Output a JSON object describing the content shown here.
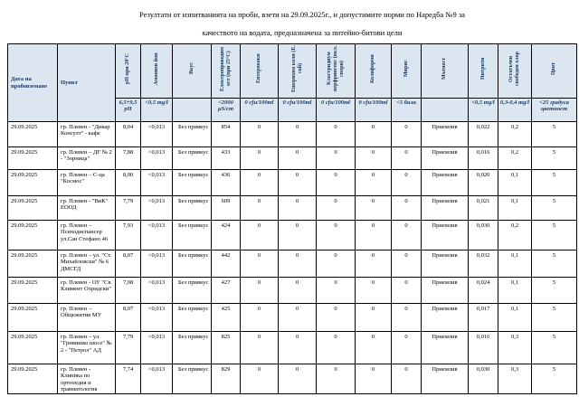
{
  "title": {
    "line1": "Резултати от изпитванията на проби, взети на 29.09.2025г., и допустимите норми по Наредба №9 за",
    "line2": "качеството на водата, предназначена за питейно-битови цели"
  },
  "colors": {
    "header_bg": "#dce6f1",
    "header_text": "#17375e"
  },
  "table": {
    "columns": [
      {
        "label": "Дата на пробовземане",
        "limit": null,
        "rotated": false
      },
      {
        "label": "Пункт",
        "limit": null,
        "rotated": false
      },
      {
        "label": "pH при 20°С",
        "limit": "6,5÷9,5 pH",
        "rotated": true
      },
      {
        "label": "Амониев йон",
        "limit": "<0,5 mg/l",
        "rotated": true
      },
      {
        "label": "Вкус",
        "limit": "",
        "rotated": true
      },
      {
        "label": "Електропроводимост (при 25°С)",
        "limit": "<2000 µS/cm",
        "rotated": true
      },
      {
        "label": "Ентерококи",
        "limit": "0 cfu/100ml",
        "rotated": true
      },
      {
        "label": "Ешерихия коли (E. coli)",
        "limit": "0 cfu/100ml",
        "rotated": true
      },
      {
        "label": "Клостридиум перфрингенс (вкл. спори)",
        "limit": "0 cfu/100ml",
        "rotated": true
      },
      {
        "label": "Колиформи",
        "limit": "0 cfu/100ml",
        "rotated": true
      },
      {
        "label": "Мирис",
        "limit": "<5 бала",
        "rotated": true
      },
      {
        "label": "Мътност",
        "limit": "",
        "rotated": true
      },
      {
        "label": "Нитрити",
        "limit": "<0,5 mg/l",
        "rotated": true
      },
      {
        "label": "Остатъчен свободен хлор",
        "limit": "0,3-0,4 mg/l",
        "rotated": true
      },
      {
        "label": "Цвят",
        "limit": "<25 градуса цветност",
        "rotated": true
      }
    ],
    "rows": [
      [
        "29.09.2025",
        "гр. Плевен - \"Дикар Консулт\" - кафе",
        "8,04",
        "<0,013",
        "Без привкус",
        "854",
        "0",
        "0",
        "0",
        "0",
        "0",
        "Приемлив",
        "0,022",
        "0,2",
        "5"
      ],
      [
        "29.09.2025",
        "гр. Плевен – ДГ № 2 - \"Зорница\"",
        "7,88",
        "<0,013",
        "Без привкус",
        "433",
        "0",
        "0",
        "0",
        "0",
        "0",
        "Приемлив",
        "0,016",
        "0,2",
        "5"
      ],
      [
        "29.09.2025",
        "гр. Плевен – С-ца \"Космос\"",
        "8,00",
        "<0,013",
        "Без привкус",
        "436",
        "0",
        "0",
        "0",
        "0",
        "0",
        "Приемлив",
        "0,020",
        "0,1",
        "5"
      ],
      [
        "29.09.2025",
        "гр. Плевен - \"ВиК\" ЕООД",
        "7,79",
        "<0,013",
        "Без привкус",
        "609",
        "0",
        "0",
        "0",
        "0",
        "0",
        "Приемлив",
        "0,021",
        "0,1",
        "5"
      ],
      [
        "29.09.2025",
        "гр. Плевен – Психодиспансер ул.Сан Стефано 46",
        "7,93",
        "<0,013",
        "Без привкус",
        "424",
        "0",
        "0",
        "0",
        "0",
        "0",
        "Приемлив",
        "0,030",
        "0,2",
        "5"
      ],
      [
        "29.09.2025",
        "гр. Плевен – ул. \"Ст. Михайловски\" № 6 ДМСГД",
        "8,07",
        "<0,013",
        "Без привкус",
        "442",
        "0",
        "0",
        "0",
        "0",
        "0",
        "Приемлив",
        "0,032",
        "0,1",
        "5"
      ],
      [
        "29.09.2025",
        "гр. Плевен - ОУ \"Св. Климент Охридски\"",
        "7,08",
        "<0,013",
        "Без привкус",
        "427",
        "0",
        "0",
        "0",
        "0",
        "0",
        "Приемлив",
        "0,024",
        "0,1",
        "5"
      ],
      [
        "29.09.2025",
        "гр. Плевен – Общежития МУ",
        "8,07",
        "<0,013",
        "Без привкус",
        "425",
        "0",
        "0",
        "0",
        "0",
        "0",
        "Приемлив",
        "0,017",
        "0,1",
        "5"
      ],
      [
        "29.09.2025",
        "гр. Плевен – ул. \"Гривишко шосе\" № 2 - \"Петрол\" АД",
        "7,79",
        "<0,013",
        "Без привкус",
        "825",
        "0",
        "0",
        "0",
        "0",
        "0",
        "Приемлив",
        "0,016",
        "0,3",
        "5"
      ],
      [
        "29.09.2025",
        "гр. Плевен - Клиника по ортопедия и травматология",
        "7,74",
        "<0,013",
        "Без привкус",
        "829",
        "0",
        "0",
        "0",
        "0",
        "0",
        "Приемлив",
        "0,030",
        "0,3",
        "5"
      ]
    ]
  }
}
